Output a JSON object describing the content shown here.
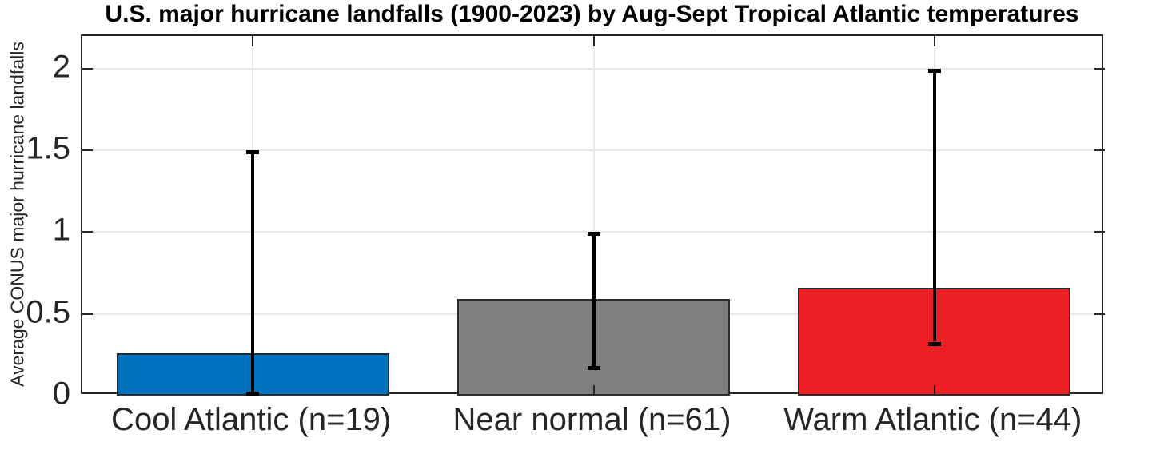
{
  "title": "U.S. major hurricane landfalls (1900-2023) by Aug-Sept Tropical Atlantic temperatures",
  "chart_data": {
    "type": "bar",
    "title": "U.S. major hurricane landfalls (1900-2023) by Aug-Sept Tropical Atlantic temperatures",
    "xlabel": "",
    "ylabel": "Average CONUS major hurricane landfalls",
    "categories": [
      "Cool Atlantic (n=19)",
      "Near normal (n=61)",
      "Warm Atlantic (n=44)"
    ],
    "values": [
      0.26,
      0.59,
      0.66
    ],
    "error_low": [
      0,
      0.18,
      0.33
    ],
    "error_high": [
      1.5,
      1.0,
      2.0
    ],
    "bar_colors": [
      "#0072BD",
      "#7F7F7F",
      "#ED1E24"
    ],
    "yticks": [
      0,
      0.5,
      1,
      1.5,
      2
    ],
    "ytick_labels": [
      "0",
      "0.5",
      "1",
      "1.5",
      "2"
    ],
    "ylim": [
      0,
      2.2
    ],
    "grid": true,
    "legend": null,
    "bar_width_fraction": 0.8,
    "errorbar_color": "#000000"
  },
  "colors": {
    "grid": "#E8E8E8",
    "axis": "#262626",
    "text": "#262626",
    "background": "#FFFFFF"
  }
}
